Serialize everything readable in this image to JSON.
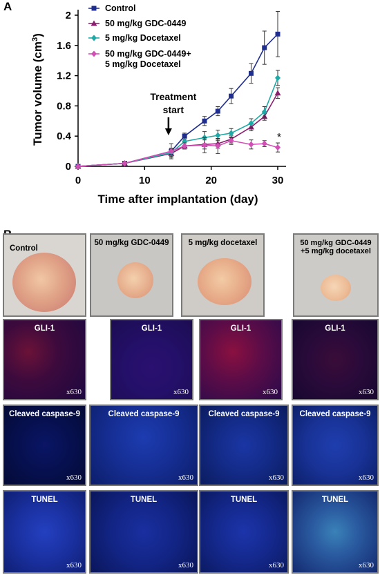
{
  "panels": {
    "a": "A",
    "b": "B"
  },
  "chart_data": {
    "type": "line",
    "xlabel": "Time after implantation (day)",
    "ylabel": "Tumor volume (cm",
    "ylabel_sup": "3",
    "ylabel_close": ")",
    "xlim": [
      0,
      30
    ],
    "ylim": [
      0,
      2
    ],
    "xticks": [
      0,
      10,
      20,
      30
    ],
    "yticks": [
      0,
      0.4,
      0.8,
      1.2,
      1.6,
      2
    ],
    "ytick_labels": [
      "0",
      "0.4",
      "0.8",
      "1.2",
      "1.6",
      "2"
    ],
    "x": [
      0,
      7,
      14,
      16,
      19,
      21,
      23,
      26,
      28,
      30
    ],
    "series": [
      {
        "name": "Control",
        "color": "#1f2d8f",
        "marker": "square",
        "values": [
          0,
          0.04,
          0.2,
          0.4,
          0.6,
          0.73,
          0.93,
          1.23,
          1.57,
          1.75
        ],
        "err": [
          0,
          0.02,
          0.1,
          0.04,
          0.06,
          0.06,
          0.1,
          0.13,
          0.22,
          0.3
        ]
      },
      {
        "name": "50 mg/kg GDC-0449",
        "color": "#8a1f70",
        "marker": "triangle",
        "values": [
          0,
          0.04,
          0.17,
          0.27,
          0.29,
          0.3,
          0.36,
          0.52,
          0.66,
          0.97
        ],
        "err": [
          0,
          0.02,
          0.05,
          0.04,
          0.06,
          0.06,
          0.05,
          0.05,
          0.05,
          0.07
        ]
      },
      {
        "name": "5 mg/kg Docetaxel",
        "color": "#1fa9a6",
        "marker": "diamond",
        "values": [
          0,
          0.04,
          0.18,
          0.33,
          0.38,
          0.41,
          0.44,
          0.57,
          0.72,
          1.17
        ],
        "err": [
          0,
          0.02,
          0.05,
          0.05,
          0.08,
          0.07,
          0.06,
          0.06,
          0.07,
          0.1
        ]
      },
      {
        "name": "50 mg/kg GDC-0449+\n5 mg/kg Docetaxel",
        "color": "#d14fb5",
        "marker": "diamond",
        "values": [
          0,
          0.04,
          0.2,
          0.27,
          0.28,
          0.27,
          0.34,
          0.29,
          0.3,
          0.25
        ],
        "err": [
          0,
          0.02,
          0.04,
          0.04,
          0.1,
          0.1,
          0.05,
          0.06,
          0.04,
          0.06
        ]
      }
    ],
    "annotations": {
      "treatment_line1": "Treatment",
      "treatment_line2": "start",
      "treatment_day": 14,
      "star": "*",
      "star_day": 30
    },
    "legend_position": "top-left",
    "grid": false
  },
  "figure_b": {
    "columns": [
      "Control",
      "50 mg/kg GDC-0449",
      "5 mg/kg docetaxel",
      "50 mg/kg GDC-0449\n+5 mg/kg docetaxel"
    ],
    "rows": [
      "GLI-1",
      "Cleaved caspase-9",
      "TUNEL"
    ],
    "magnification": "x630"
  }
}
